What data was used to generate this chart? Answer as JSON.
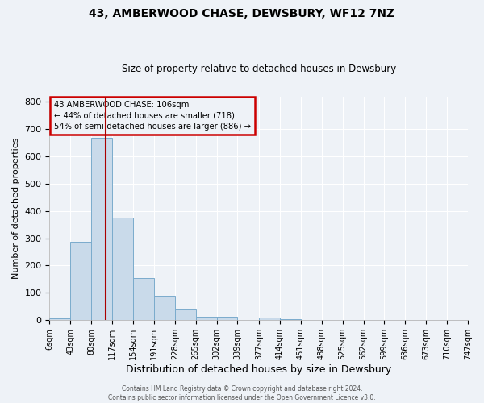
{
  "title": "43, AMBERWOOD CHASE, DEWSBURY, WF12 7NZ",
  "subtitle": "Size of property relative to detached houses in Dewsbury",
  "xlabel": "Distribution of detached houses by size in Dewsbury",
  "ylabel": "Number of detached properties",
  "bin_edges": [
    6,
    43,
    80,
    117,
    154,
    191,
    228,
    265,
    302,
    339,
    377,
    414,
    451,
    488,
    525,
    562,
    599,
    636,
    673,
    710,
    747
  ],
  "bin_counts": [
    8,
    288,
    668,
    375,
    155,
    88,
    42,
    13,
    12,
    0,
    10,
    5,
    0,
    0,
    0,
    0,
    0,
    0,
    0,
    0
  ],
  "vline_x": 106,
  "bar_color": "#c9daea",
  "bar_edge_color": "#7aabcc",
  "vline_color": "#aa0000",
  "ylim": [
    0,
    820
  ],
  "yticks": [
    0,
    100,
    200,
    300,
    400,
    500,
    600,
    700,
    800
  ],
  "annotation_box_color": "#cc0000",
  "annotation_lines": [
    "43 AMBERWOOD CHASE: 106sqm",
    "← 44% of detached houses are smaller (718)",
    "54% of semi-detached houses are larger (886) →"
  ],
  "footer_lines": [
    "Contains HM Land Registry data © Crown copyright and database right 2024.",
    "Contains public sector information licensed under the Open Government Licence v3.0."
  ],
  "background_color": "#eef2f7",
  "grid_color": "#ffffff",
  "title_fontsize": 10,
  "subtitle_fontsize": 8.5,
  "xlabel_fontsize": 9,
  "ylabel_fontsize": 8,
  "xtick_fontsize": 7,
  "ytick_fontsize": 8
}
